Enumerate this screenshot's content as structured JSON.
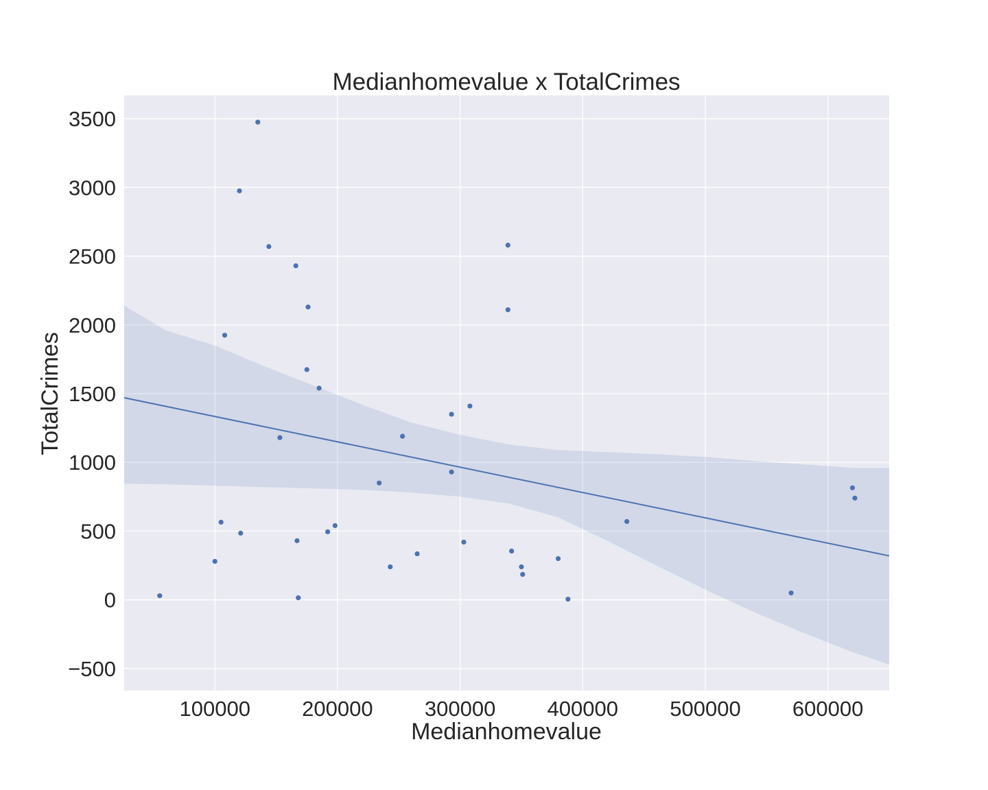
{
  "chart_data": {
    "type": "scatter",
    "title": "Medianhomevalue x TotalCrimes",
    "xlabel": "Medianhomevalue",
    "ylabel": "TotalCrimes",
    "xlim": [
      26000,
      650000
    ],
    "ylim": [
      -660,
      3670
    ],
    "xticks": [
      100000,
      200000,
      300000,
      400000,
      500000,
      600000
    ],
    "xtick_labels": [
      "100000",
      "200000",
      "300000",
      "400000",
      "500000",
      "600000"
    ],
    "yticks": [
      -500,
      0,
      500,
      1000,
      1500,
      2000,
      2500,
      3000,
      3500
    ],
    "ytick_labels": [
      "−500",
      "0",
      "500",
      "1000",
      "1500",
      "2000",
      "2500",
      "3000",
      "3500"
    ],
    "grid": true,
    "colors": {
      "background": "#eaeaf2",
      "grid": "#ffffff",
      "points": "#4c72b0",
      "line": "#4c72b0",
      "band": "#4c72b0"
    },
    "points": [
      {
        "x": 55000,
        "y": 30
      },
      {
        "x": 100000,
        "y": 280
      },
      {
        "x": 105000,
        "y": 565
      },
      {
        "x": 108000,
        "y": 1925
      },
      {
        "x": 120000,
        "y": 2975
      },
      {
        "x": 121000,
        "y": 485
      },
      {
        "x": 135000,
        "y": 3475
      },
      {
        "x": 144000,
        "y": 2570
      },
      {
        "x": 153000,
        "y": 1180
      },
      {
        "x": 166000,
        "y": 2430
      },
      {
        "x": 167000,
        "y": 430
      },
      {
        "x": 168000,
        "y": 15
      },
      {
        "x": 175000,
        "y": 1675
      },
      {
        "x": 176000,
        "y": 2130
      },
      {
        "x": 185000,
        "y": 1540
      },
      {
        "x": 192000,
        "y": 495
      },
      {
        "x": 198000,
        "y": 540
      },
      {
        "x": 234000,
        "y": 850
      },
      {
        "x": 243000,
        "y": 240
      },
      {
        "x": 253000,
        "y": 1190
      },
      {
        "x": 265000,
        "y": 335
      },
      {
        "x": 293000,
        "y": 1350
      },
      {
        "x": 293000,
        "y": 930
      },
      {
        "x": 303000,
        "y": 420
      },
      {
        "x": 308000,
        "y": 1410
      },
      {
        "x": 339000,
        "y": 2580
      },
      {
        "x": 339000,
        "y": 2110
      },
      {
        "x": 342000,
        "y": 355
      },
      {
        "x": 350000,
        "y": 240
      },
      {
        "x": 351000,
        "y": 185
      },
      {
        "x": 380000,
        "y": 300
      },
      {
        "x": 388000,
        "y": 5
      },
      {
        "x": 436000,
        "y": 570
      },
      {
        "x": 570000,
        "y": 50
      },
      {
        "x": 620000,
        "y": 815
      },
      {
        "x": 622000,
        "y": 740
      }
    ],
    "regression": {
      "x": [
        26000,
        650000
      ],
      "y": [
        1470,
        320
      ]
    },
    "confidence_band": {
      "x": [
        26000,
        60000,
        100000,
        140000,
        180000,
        220000,
        260000,
        300000,
        340000,
        380000,
        420000,
        460000,
        500000,
        540000,
        580000,
        620000,
        650000
      ],
      "upper": [
        2140,
        1960,
        1850,
        1700,
        1560,
        1420,
        1290,
        1200,
        1130,
        1090,
        1075,
        1060,
        1040,
        1010,
        985,
        960,
        960
      ],
      "lower": [
        845,
        840,
        830,
        820,
        810,
        800,
        780,
        750,
        700,
        600,
        430,
        250,
        75,
        -90,
        -240,
        -380,
        -470
      ]
    }
  }
}
